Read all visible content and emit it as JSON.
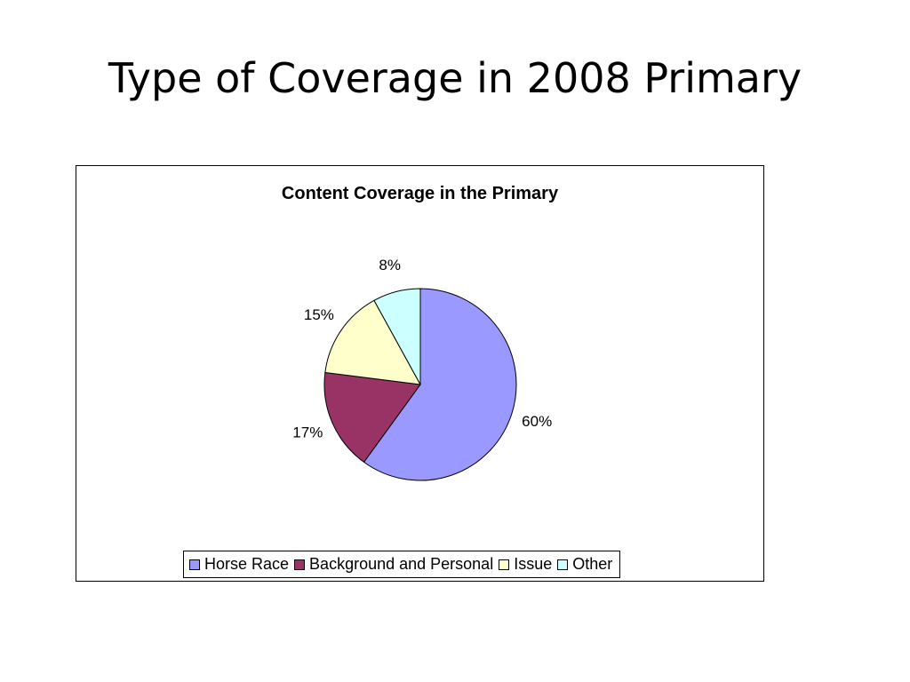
{
  "slide": {
    "title": "Type of Coverage in 2008 Primary"
  },
  "chart_data": {
    "type": "pie",
    "title": "Content Coverage in the Primary",
    "categories": [
      "Horse Race",
      "Background and Personal",
      "Issue",
      "Other"
    ],
    "values": [
      60,
      17,
      15,
      8
    ],
    "labels": [
      "60%",
      "17%",
      "15%",
      "8%"
    ],
    "colors": [
      "#9999ff",
      "#993366",
      "#ffffcc",
      "#ccffff"
    ],
    "start_angle": "12 o'clock",
    "direction": "clockwise",
    "legend": "bottom"
  }
}
